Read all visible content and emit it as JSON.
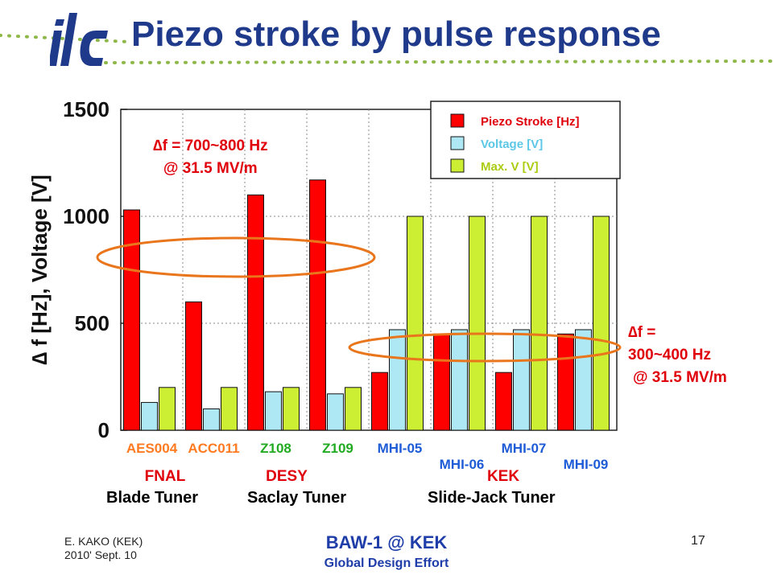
{
  "slide": {
    "title": "Piezo stroke by pulse response",
    "footer_author": "E. KAKO (KEK)",
    "footer_date": "2010' Sept. 10",
    "footer_event": "BAW-1 @ KEK",
    "footer_org": "Global Design Effort",
    "page_number": "17",
    "logo_text": "ilc"
  },
  "colors": {
    "title": "#1f3a8a",
    "piezo": "#ff0000",
    "voltage": "#aee8f5",
    "maxv": "#ccee33",
    "annotation": "#e0000b",
    "ellipse": "#e9761c"
  },
  "annotations": {
    "left_line1": "∆f = 700~800 Hz",
    "left_line2": "@ 31.5 MV/m",
    "right_line1": "∆f =",
    "right_line2": "300~400 Hz",
    "right_line3": "@ 31.5 MV/m"
  },
  "tuners": [
    "Blade Tuner",
    "Saclay Tuner",
    "Slide-Jack Tuner"
  ],
  "chart_data": {
    "type": "bar",
    "ylabel": "∆ f [Hz], Voltage [V]",
    "ylim": [
      0,
      1500
    ],
    "yticks": [
      0,
      500,
      1000,
      1500
    ],
    "grid": true,
    "legend_position": "top-right",
    "categories": [
      "AES004",
      "ACC011",
      "Z108",
      "Z109",
      "MHI-05",
      "MHI-06",
      "MHI-07",
      "MHI-09"
    ],
    "groups": [
      {
        "label": "FNAL",
        "color": "#e0000b"
      },
      {
        "label": "DESY",
        "color": "#e0000b"
      },
      {
        "label": "KEK",
        "color": "#e0000b"
      }
    ],
    "series": [
      {
        "name": "Piezo Stroke [Hz]",
        "color": "#ff0000",
        "values": [
          1030,
          600,
          1100,
          1170,
          270,
          450,
          270,
          450
        ]
      },
      {
        "name": "Voltage [V]",
        "color": "#aee8f5",
        "values": [
          130,
          100,
          180,
          170,
          470,
          470,
          470,
          470
        ]
      },
      {
        "name": "Max. V [V]",
        "color": "#ccee33",
        "values": [
          200,
          200,
          200,
          200,
          1000,
          1000,
          1000,
          1000
        ]
      }
    ]
  }
}
